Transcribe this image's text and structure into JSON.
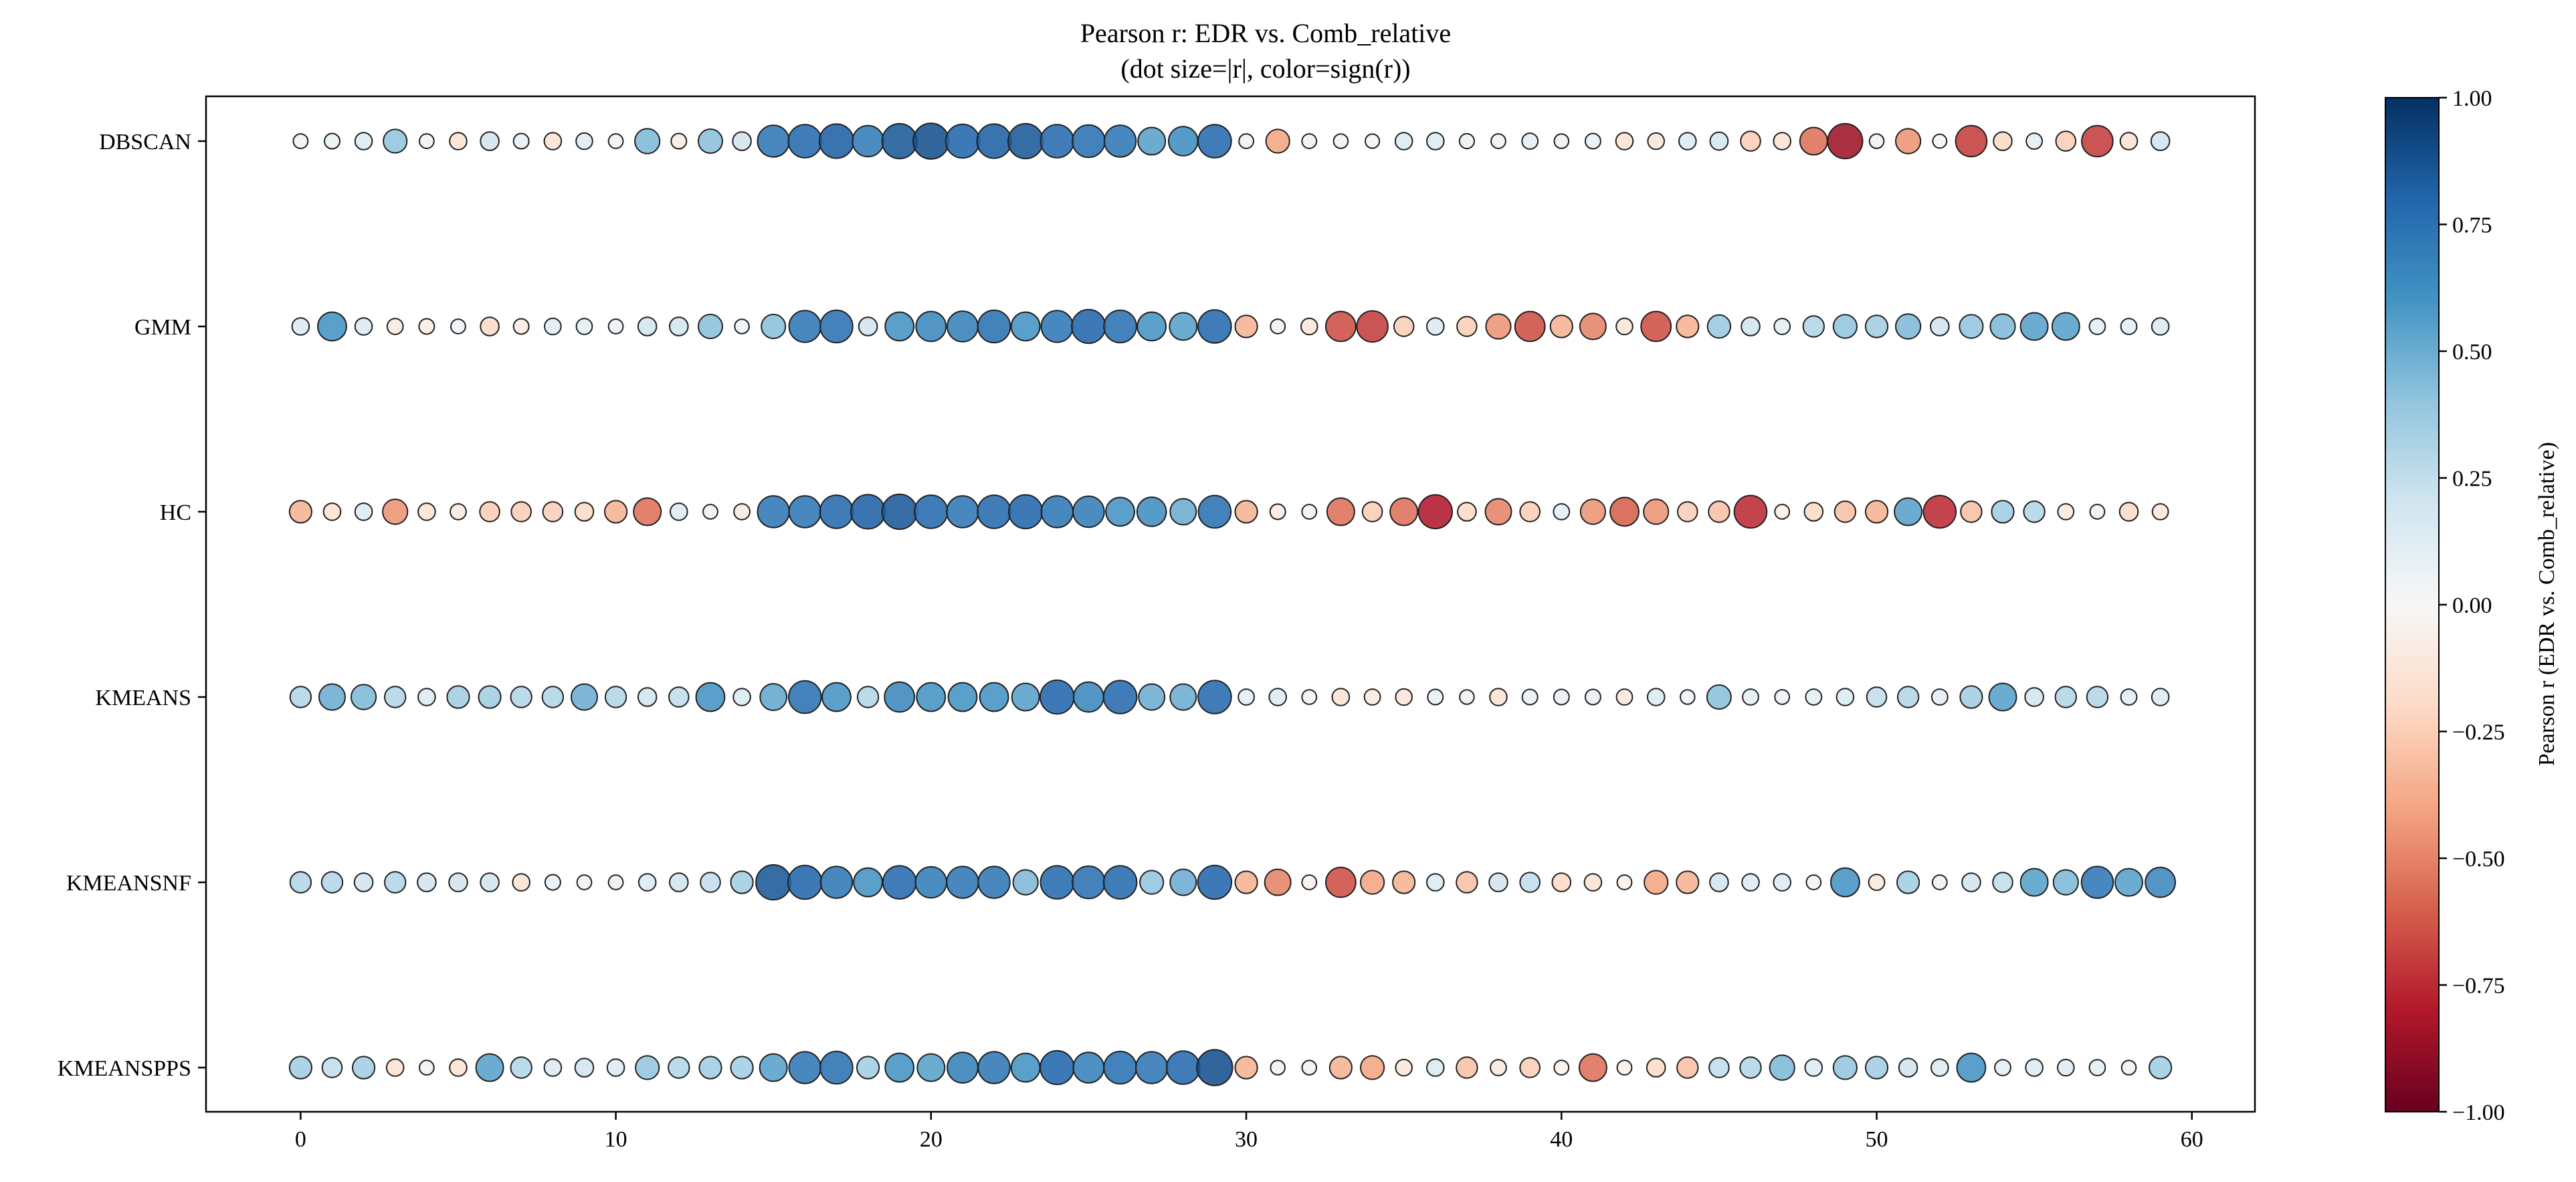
{
  "chart_data": {
    "type": "scatter",
    "title": "Pearson r: EDR vs. Comb_relative",
    "subtitle": "(dot size=|r|, color=sign(r))",
    "xlabel": "",
    "ylabel": "",
    "xlim": [
      -3,
      62
    ],
    "x_ticks": [
      0,
      10,
      20,
      30,
      40,
      50,
      60
    ],
    "categories": [
      "DBSCAN",
      "GMM",
      "HC",
      "KMEANS",
      "KMEANSNF",
      "KMEANSPPS"
    ],
    "x": [
      0,
      1,
      2,
      3,
      4,
      5,
      6,
      7,
      8,
      9,
      10,
      11,
      12,
      13,
      14,
      15,
      16,
      17,
      18,
      19,
      20,
      21,
      22,
      23,
      24,
      25,
      26,
      27,
      28,
      29,
      30,
      31,
      32,
      33,
      34,
      35,
      36,
      37,
      38,
      39,
      40,
      41,
      42,
      43,
      44,
      45,
      46,
      47,
      48,
      49,
      50,
      51,
      52,
      53,
      54,
      55,
      56,
      57,
      58,
      59
    ],
    "series": [
      {
        "name": "DBSCAN",
        "values": [
          0.05,
          0.08,
          0.15,
          0.4,
          0.05,
          -0.15,
          0.2,
          0.08,
          -0.15,
          0.12,
          0.05,
          0.45,
          -0.08,
          0.42,
          0.2,
          0.72,
          0.78,
          0.82,
          0.7,
          0.85,
          0.88,
          0.8,
          0.82,
          0.85,
          0.78,
          0.75,
          0.72,
          0.55,
          0.62,
          0.78,
          0.05,
          -0.4,
          0.05,
          0.04,
          0.03,
          0.15,
          0.15,
          0.06,
          0.05,
          0.1,
          0.04,
          0.08,
          -0.15,
          -0.12,
          0.15,
          0.18,
          -0.25,
          -0.15,
          -0.55,
          -0.85,
          0.04,
          -0.45,
          0.02,
          -0.7,
          -0.2,
          0.1,
          -0.25,
          -0.7,
          -0.15,
          0.2
        ]
      },
      {
        "name": "GMM",
        "values": [
          0.15,
          0.6,
          0.15,
          -0.1,
          -0.08,
          0.05,
          -0.2,
          -0.08,
          0.12,
          0.1,
          0.05,
          0.2,
          0.2,
          0.42,
          0.04,
          0.42,
          0.72,
          0.75,
          0.2,
          0.6,
          0.65,
          0.68,
          0.75,
          0.6,
          0.72,
          0.8,
          0.75,
          0.6,
          0.55,
          0.78,
          -0.35,
          0.05,
          -0.12,
          -0.65,
          -0.7,
          -0.25,
          0.15,
          -0.25,
          -0.45,
          -0.65,
          -0.35,
          -0.5,
          -0.12,
          -0.65,
          -0.35,
          0.38,
          0.2,
          0.1,
          0.3,
          0.4,
          0.35,
          0.45,
          0.2,
          0.4,
          0.45,
          0.55,
          0.55,
          0.1,
          0.1,
          0.15
        ]
      },
      {
        "name": "HC",
        "values": [
          -0.35,
          -0.15,
          0.15,
          -0.45,
          -0.15,
          -0.1,
          -0.25,
          -0.25,
          -0.25,
          -0.2,
          -0.35,
          -0.55,
          0.15,
          0.05,
          -0.1,
          0.72,
          0.72,
          0.78,
          0.82,
          0.85,
          0.78,
          0.72,
          0.78,
          0.8,
          0.72,
          0.7,
          0.6,
          0.62,
          0.5,
          0.75,
          -0.35,
          -0.08,
          -0.05,
          -0.55,
          -0.25,
          -0.55,
          -0.8,
          -0.2,
          -0.5,
          -0.25,
          0.1,
          -0.45,
          -0.6,
          -0.45,
          -0.25,
          -0.3,
          -0.75,
          -0.05,
          -0.2,
          -0.3,
          -0.35,
          0.55,
          -0.75,
          -0.3,
          0.35,
          0.3,
          -0.1,
          -0.05,
          -0.2,
          -0.1
        ]
      },
      {
        "name": "KMEANS",
        "values": [
          0.3,
          0.5,
          0.45,
          0.3,
          0.15,
          0.35,
          0.35,
          0.3,
          0.3,
          0.5,
          0.3,
          0.2,
          0.25,
          0.6,
          0.15,
          0.52,
          0.75,
          0.6,
          0.3,
          0.65,
          0.6,
          0.6,
          0.6,
          0.55,
          0.8,
          0.65,
          0.78,
          0.5,
          0.5,
          0.78,
          0.1,
          0.15,
          0.05,
          -0.15,
          -0.1,
          -0.12,
          0.08,
          0.04,
          -0.15,
          0.08,
          0.08,
          0.08,
          -0.1,
          0.15,
          0.04,
          0.42,
          0.1,
          0.05,
          0.1,
          0.15,
          0.25,
          0.3,
          0.1,
          0.35,
          0.55,
          0.2,
          0.3,
          0.3,
          0.1,
          0.15
        ]
      },
      {
        "name": "KMEANSNF",
        "values": [
          0.3,
          0.3,
          0.2,
          0.3,
          0.2,
          0.2,
          0.2,
          -0.15,
          0.08,
          0.05,
          0.05,
          0.15,
          0.2,
          0.25,
          0.35,
          0.85,
          0.8,
          0.72,
          0.6,
          0.78,
          0.7,
          0.72,
          0.72,
          0.45,
          0.78,
          0.75,
          0.78,
          0.4,
          0.5,
          0.8,
          -0.35,
          -0.5,
          -0.05,
          -0.65,
          -0.4,
          -0.35,
          0.15,
          -0.3,
          0.2,
          0.25,
          -0.2,
          -0.15,
          -0.05,
          -0.4,
          -0.35,
          0.2,
          0.15,
          0.15,
          0.05,
          0.6,
          -0.1,
          0.35,
          0.05,
          0.2,
          0.25,
          0.55,
          0.45,
          0.72,
          0.55,
          0.65
        ]
      },
      {
        "name": "KMEANSPPS",
        "values": [
          0.35,
          0.25,
          0.35,
          -0.15,
          0.05,
          -0.15,
          0.55,
          0.3,
          0.15,
          0.2,
          0.15,
          0.4,
          0.3,
          0.35,
          0.35,
          0.55,
          0.72,
          0.75,
          0.35,
          0.6,
          0.55,
          0.68,
          0.72,
          0.6,
          0.8,
          0.68,
          0.75,
          0.72,
          0.78,
          0.88,
          -0.35,
          0.04,
          0.04,
          -0.35,
          -0.4,
          -0.12,
          0.15,
          -0.3,
          -0.1,
          -0.25,
          -0.05,
          -0.55,
          -0.05,
          -0.2,
          -0.3,
          0.25,
          0.3,
          0.45,
          0.15,
          0.4,
          0.35,
          0.2,
          0.15,
          0.6,
          0.1,
          0.15,
          0.12,
          0.1,
          0.04,
          0.35
        ]
      }
    ],
    "colorbar": {
      "label": "Pearson r (EDR vs. Comb_relative)",
      "range": [
        -1,
        1
      ],
      "ticks": [
        "1.00",
        "0.75",
        "0.50",
        "0.25",
        "0.00",
        "−0.25",
        "−0.50",
        "−0.75",
        "−1.00"
      ],
      "colormap": "RdBu",
      "stops": [
        "#67001f",
        "#b2182b",
        "#d6604d",
        "#f4a582",
        "#fddbc7",
        "#f7f7f7",
        "#d1e5f0",
        "#92c5de",
        "#4393c3",
        "#2166ac",
        "#053061"
      ]
    },
    "legend": "none",
    "grid": false
  }
}
